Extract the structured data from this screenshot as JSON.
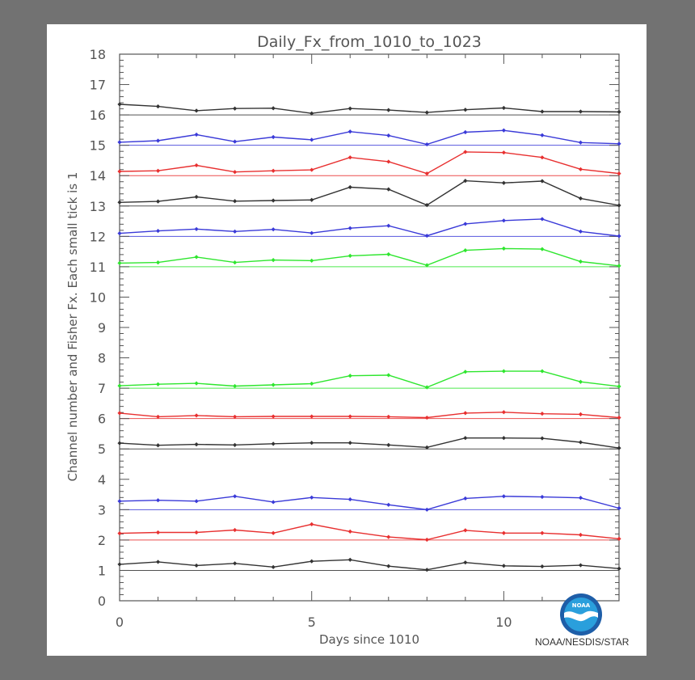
{
  "chart_data": {
    "type": "line",
    "title": "Daily_Fx_from_1010_to_1023",
    "xlabel": "Days since 1010",
    "ylabel": "Channel number and Fisher Fx. Each small tick is 1",
    "xlim": [
      0,
      13
    ],
    "ylim": [
      0,
      18
    ],
    "x_ticks": [
      0,
      5,
      10
    ],
    "y_ticks": [
      0,
      1,
      2,
      3,
      4,
      5,
      6,
      7,
      8,
      9,
      10,
      11,
      12,
      13,
      14,
      15,
      16,
      17,
      18
    ],
    "x": [
      0,
      1,
      2,
      3,
      4,
      5,
      6,
      7,
      8,
      9,
      10,
      11,
      12,
      13
    ],
    "series": [
      {
        "name": "Channel 1",
        "channel": 1,
        "color": "#333333",
        "values": [
          1.2,
          1.28,
          1.16,
          1.23,
          1.11,
          1.3,
          1.35,
          1.14,
          1.02,
          1.26,
          1.15,
          1.13,
          1.17,
          1.06
        ]
      },
      {
        "name": "Channel 2",
        "channel": 2,
        "color": "#e83030",
        "values": [
          2.22,
          2.25,
          2.25,
          2.33,
          2.23,
          2.52,
          2.28,
          2.1,
          2.01,
          2.32,
          2.23,
          2.23,
          2.17,
          2.04
        ]
      },
      {
        "name": "Channel 3",
        "channel": 3,
        "color": "#3a3ad8",
        "values": [
          3.28,
          3.31,
          3.28,
          3.44,
          3.25,
          3.4,
          3.34,
          3.16,
          3.0,
          3.37,
          3.44,
          3.42,
          3.39,
          3.05
        ]
      },
      {
        "name": "Channel 5",
        "channel": 5,
        "color": "#333333",
        "values": [
          5.19,
          5.12,
          5.15,
          5.13,
          5.17,
          5.2,
          5.2,
          5.13,
          5.05,
          5.36,
          5.36,
          5.35,
          5.22,
          5.03
        ]
      },
      {
        "name": "Channel 6",
        "channel": 6,
        "color": "#e83030",
        "values": [
          6.18,
          6.06,
          6.1,
          6.06,
          6.07,
          6.07,
          6.07,
          6.06,
          6.03,
          6.18,
          6.21,
          6.16,
          6.14,
          6.03
        ]
      },
      {
        "name": "Channel 7",
        "channel": 7,
        "color": "#2ee62e",
        "values": [
          7.08,
          7.13,
          7.16,
          7.07,
          7.11,
          7.15,
          7.41,
          7.43,
          7.03,
          7.54,
          7.56,
          7.56,
          7.21,
          7.06
        ]
      },
      {
        "name": "Channel 11",
        "channel": 11,
        "color": "#2ee62e",
        "values": [
          11.12,
          11.14,
          11.32,
          11.14,
          11.22,
          11.2,
          11.36,
          11.41,
          11.05,
          11.54,
          11.6,
          11.58,
          11.17,
          11.03
        ]
      },
      {
        "name": "Channel 12",
        "channel": 12,
        "color": "#3a3ad8",
        "values": [
          12.1,
          12.18,
          12.24,
          12.16,
          12.23,
          12.11,
          12.27,
          12.35,
          12.02,
          12.41,
          12.52,
          12.57,
          12.16,
          12.01
        ]
      },
      {
        "name": "Channel 13",
        "channel": 13,
        "color": "#333333",
        "values": [
          13.12,
          13.15,
          13.3,
          13.16,
          13.18,
          13.2,
          13.62,
          13.55,
          13.03,
          13.83,
          13.76,
          13.82,
          13.25,
          13.02
        ]
      },
      {
        "name": "Channel 14",
        "channel": 14,
        "color": "#e83030",
        "values": [
          14.14,
          14.16,
          14.34,
          14.12,
          14.16,
          14.19,
          14.6,
          14.46,
          14.07,
          14.78,
          14.76,
          14.6,
          14.21,
          14.07
        ]
      },
      {
        "name": "Channel 15",
        "channel": 15,
        "color": "#3a3ad8",
        "values": [
          15.1,
          15.15,
          15.35,
          15.12,
          15.27,
          15.18,
          15.45,
          15.32,
          15.03,
          15.43,
          15.49,
          15.33,
          15.09,
          15.05
        ]
      },
      {
        "name": "Channel 16",
        "channel": 16,
        "color": "#333333",
        "values": [
          16.35,
          16.28,
          16.14,
          16.21,
          16.22,
          16.05,
          16.21,
          16.16,
          16.08,
          16.17,
          16.23,
          16.11,
          16.11,
          16.1
        ]
      }
    ]
  },
  "logo": {
    "badge_text": "NOAA",
    "caption": "NOAA/NESDIS/STAR",
    "colors": {
      "outer": "#1e5ea8",
      "inner": "#2a9fdc",
      "wing": "#ffffff"
    }
  }
}
